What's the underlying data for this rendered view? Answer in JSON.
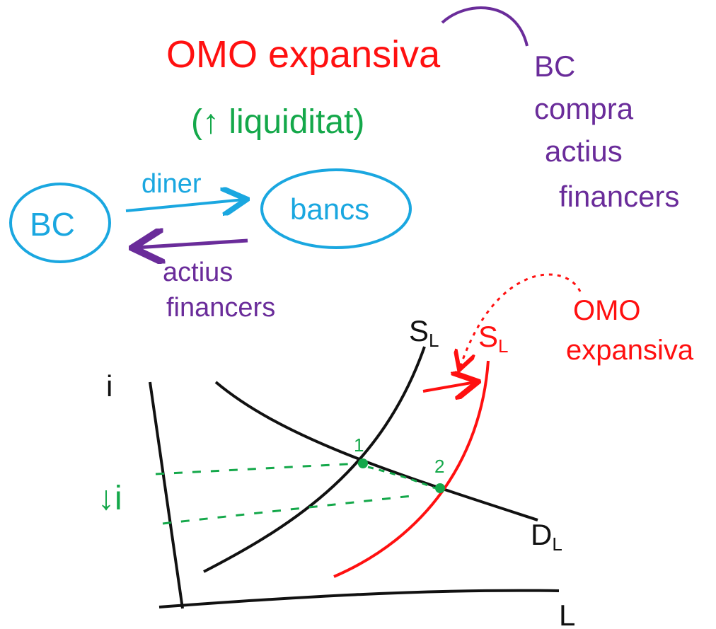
{
  "header": {
    "title": "OMO expansiva",
    "subtitle": "(↑ liquiditat)"
  },
  "note": {
    "lines": [
      "BC",
      "compra",
      "actius",
      "financers"
    ]
  },
  "flow": {
    "nodes": [
      {
        "label": "BC"
      },
      {
        "label": "bancs"
      }
    ],
    "edges": [
      {
        "label": [
          "diner"
        ]
      },
      {
        "label": [
          "actius",
          "financers"
        ]
      }
    ]
  },
  "graph": {
    "y_axis": "i",
    "x_axis": "L",
    "supply_before": {
      "label": "S",
      "subscript": "L"
    },
    "supply_after": {
      "label": "S",
      "subscript": "L"
    },
    "demand": {
      "label": "D",
      "subscript": "L"
    },
    "points": [
      "1",
      "2"
    ],
    "shift_label": [
      "OMO",
      "expansiva"
    ],
    "effect_label": "↓i"
  }
}
